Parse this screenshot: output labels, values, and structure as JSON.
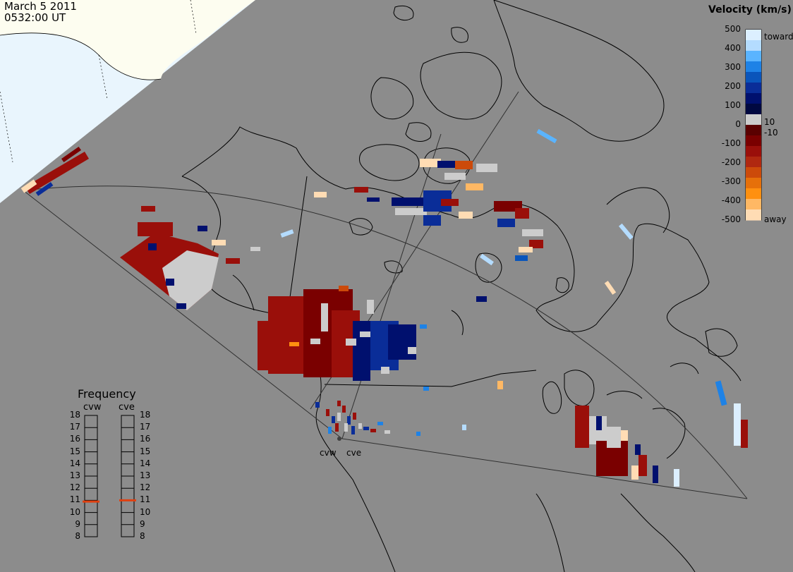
{
  "header": {
    "date": "March  5 2011",
    "time": "0532:00 UT"
  },
  "colorbar": {
    "title": "Velocity (km/s)",
    "ticks": [
      "500",
      "400",
      "300",
      "200",
      "100",
      "0",
      "-100",
      "-200",
      "-300",
      "-400",
      "-500"
    ],
    "side_labels": {
      "toward": "toward",
      "pos_threshold": "10",
      "neg_threshold": "-10",
      "away": "away"
    },
    "colors": [
      "#dcefff",
      "#b4dcff",
      "#5ab4ff",
      "#1e82e6",
      "#0a55bb",
      "#0a2d98",
      "#00106e",
      "#000840",
      "#cccccc",
      "#5a0000",
      "#7a0000",
      "#9a0f0a",
      "#b02810",
      "#cc4a0a",
      "#e6700a",
      "#ff9010",
      "#ffb864",
      "#ffdcb4"
    ]
  },
  "frequency": {
    "title": "Frequency",
    "radars": [
      "cvw",
      "cve"
    ],
    "scale": [
      "18",
      "17",
      "16",
      "15",
      "14",
      "13",
      "12",
      "11",
      "10",
      "9",
      "8"
    ],
    "marker_color": "#e04010",
    "selected_mhz": {
      "cvw": 10.9,
      "cve": 11.0
    }
  },
  "sites": [
    "cvw",
    "cve"
  ],
  "colors": {
    "background": "#8c8c8c",
    "sky": "#e9f5fd",
    "ice": "#fdfdf0",
    "coast": "#000000",
    "fov": "#303030"
  }
}
